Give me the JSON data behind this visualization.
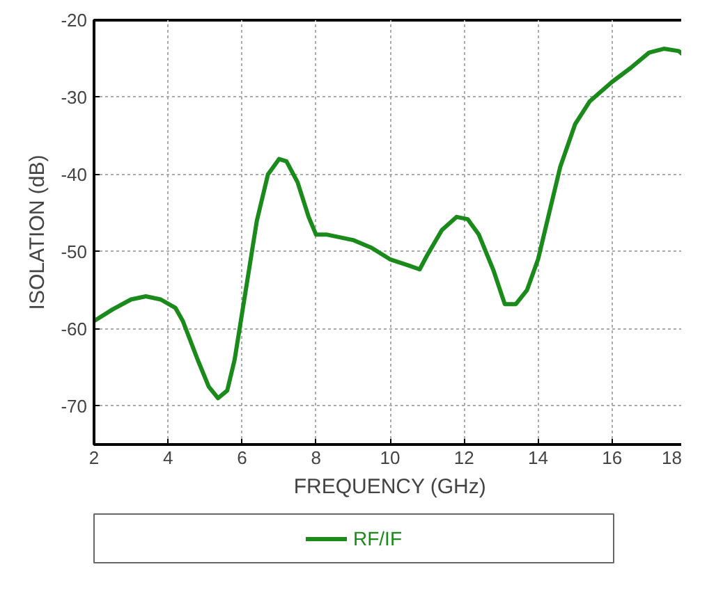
{
  "chart_data": {
    "type": "line",
    "xlabel": "FREQUENCY (GHz)",
    "ylabel": "ISOLATION (dB)",
    "xlim": [
      2,
      18
    ],
    "xticks": [
      2,
      4,
      6,
      8,
      10,
      12,
      14,
      16,
      18
    ],
    "ylim": [
      -75,
      -20
    ],
    "yticks": [
      -70,
      -60,
      -50,
      -40,
      -30,
      -20
    ],
    "grid": true,
    "legend": "bottom",
    "series": [
      {
        "name": "RF/IF",
        "color": "#1a8a1a",
        "x": [
          2,
          2.5,
          3,
          3.4,
          3.8,
          4.2,
          4.4,
          4.8,
          5.1,
          5.35,
          5.6,
          5.8,
          6.1,
          6.4,
          6.7,
          7.0,
          7.2,
          7.5,
          7.8,
          8.0,
          8.3,
          9,
          9.5,
          10,
          10.5,
          10.8,
          11,
          11.4,
          11.8,
          12.1,
          12.4,
          12.8,
          13.1,
          13.4,
          13.7,
          14,
          14.3,
          14.6,
          15,
          15.4,
          16,
          16.5,
          17,
          17.4,
          17.8,
          18
        ],
        "values": [
          -59,
          -57.5,
          -56.2,
          -55.8,
          -56.2,
          -57.3,
          -59,
          -64,
          -67.5,
          -69,
          -68,
          -64,
          -55,
          -46,
          -40,
          -38,
          -38.3,
          -41,
          -45.5,
          -47.8,
          -47.8,
          -48.5,
          -49.5,
          -51,
          -51.8,
          -52.3,
          -50.5,
          -47.2,
          -45.5,
          -45.8,
          -47.8,
          -52.5,
          -56.8,
          -56.8,
          -55,
          -51,
          -45,
          -39,
          -33.5,
          -30.5,
          -28,
          -26.2,
          -24.2,
          -23.7,
          -24,
          -24.8
        ]
      }
    ]
  }
}
